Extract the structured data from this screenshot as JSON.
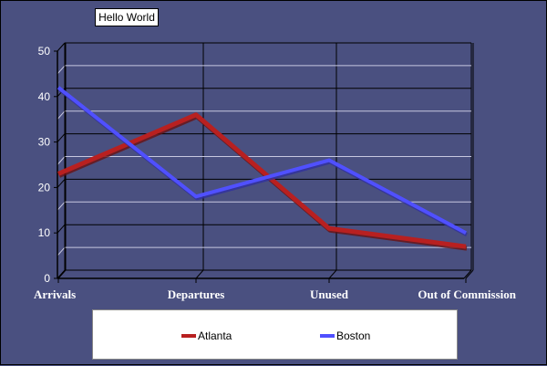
{
  "chart_data": {
    "type": "line",
    "title": "Hello World",
    "categories": [
      "Arrivals",
      "Departures",
      "Unused",
      "Out of Commission"
    ],
    "ylim": [
      0,
      50
    ],
    "yticks": [
      0,
      10,
      20,
      30,
      40,
      50
    ],
    "grid": true,
    "legend_position": "bottom",
    "series": [
      {
        "name": "Atlanta",
        "values": [
          23,
          36,
          11,
          7
        ],
        "color": "#b82020"
      },
      {
        "name": "Boston",
        "values": [
          42,
          18,
          26,
          10
        ],
        "color": "#5050ff"
      }
    ]
  }
}
